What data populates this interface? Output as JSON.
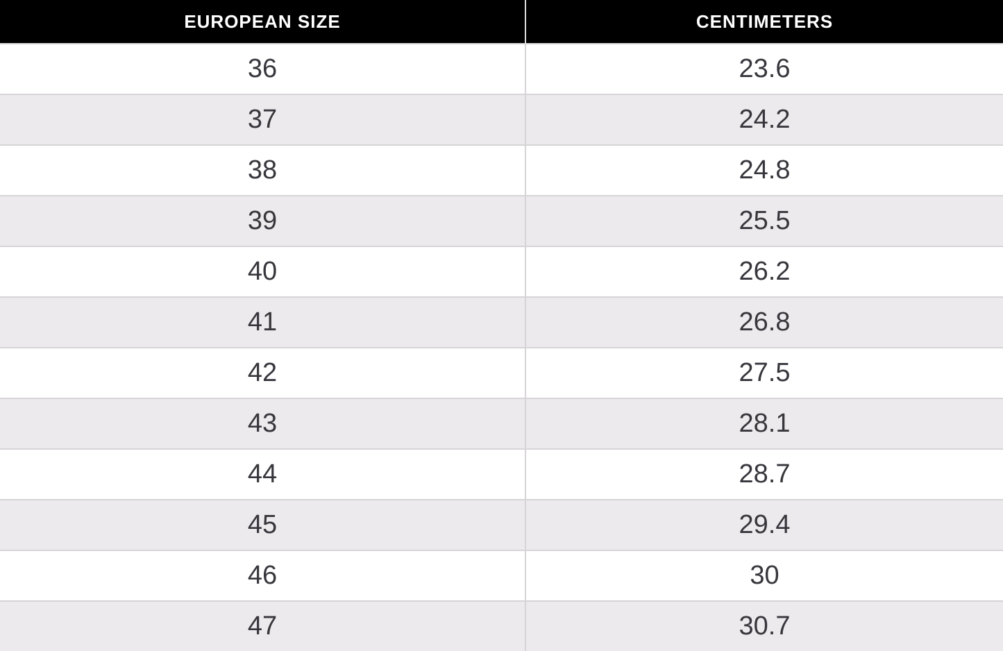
{
  "chart_data": {
    "type": "table",
    "columns": [
      "EUROPEAN SIZE",
      "CENTIMETERS"
    ],
    "rows": [
      [
        "36",
        "23.6"
      ],
      [
        "37",
        "24.2"
      ],
      [
        "38",
        "24.8"
      ],
      [
        "39",
        "25.5"
      ],
      [
        "40",
        "26.2"
      ],
      [
        "41",
        "26.8"
      ],
      [
        "42",
        "27.5"
      ],
      [
        "43",
        "28.1"
      ],
      [
        "44",
        "28.7"
      ],
      [
        "45",
        "29.4"
      ],
      [
        "46",
        "30"
      ],
      [
        "47",
        "30.7"
      ]
    ]
  },
  "colors": {
    "header_bg": "#000000",
    "header_text": "#ffffff",
    "row_bg": "#ffffff",
    "row_alt_bg": "#eceaec",
    "grid_line": "#d6d4d6",
    "body_text": "#37363c"
  }
}
